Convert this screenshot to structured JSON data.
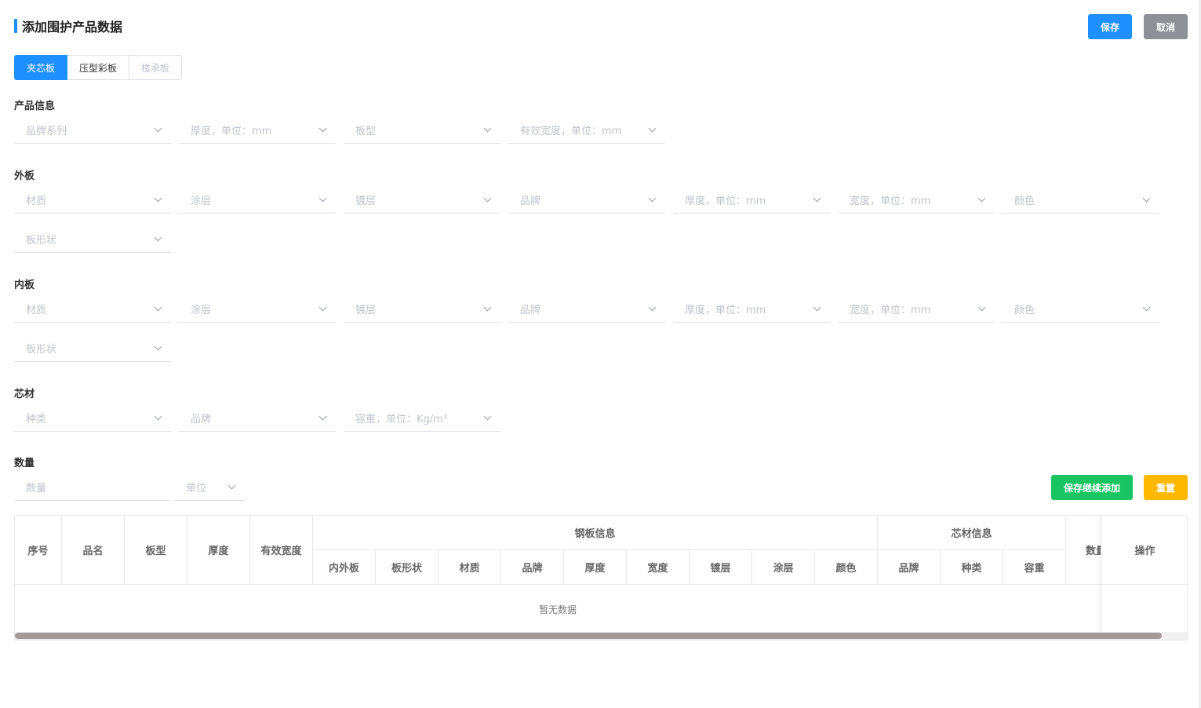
{
  "header": {
    "title": "添加围护产品数据",
    "save_label": "保存",
    "cancel_label": "取消"
  },
  "tabs": [
    {
      "label": "夹芯板",
      "state": "active"
    },
    {
      "label": "压型彩板",
      "state": "normal"
    },
    {
      "label": "楼承板",
      "state": "disabled"
    }
  ],
  "sections": {
    "product": {
      "title": "产品信息",
      "fields": [
        "品牌系列",
        "厚度，单位：mm",
        "板型",
        "有效宽度，单位：mm"
      ]
    },
    "outer": {
      "title": "外板",
      "fields": [
        "材质",
        "涂层",
        "镀层",
        "品牌",
        "厚度，单位：mm",
        "宽度，单位：mm",
        "颜色",
        "板形状"
      ]
    },
    "inner": {
      "title": "内板",
      "fields": [
        "材质",
        "涂层",
        "镀层",
        "品牌",
        "厚度，单位：mm",
        "宽度，单位：mm",
        "颜色",
        "板形状"
      ]
    },
    "core": {
      "title": "芯材",
      "fields": [
        "种类",
        "品牌",
        "容重，单位：Kg/m³"
      ]
    },
    "quantity": {
      "title": "数量",
      "qty_placeholder": "数量",
      "unit_placeholder": "单位"
    }
  },
  "actions": {
    "continue_label": "保存继续添加",
    "reset_label": "重置"
  },
  "table": {
    "headers": {
      "index": "序号",
      "name": "品名",
      "board_type": "板型",
      "thickness": "厚度",
      "effective_width": "有效宽度",
      "steel_group": "钢板信息",
      "core_group": "芯材信息",
      "quantity": "数量",
      "actions": "操作"
    },
    "steel_subheaders": [
      "内外板",
      "板形状",
      "材质",
      "品牌",
      "厚度",
      "宽度",
      "镀层",
      "涂层",
      "颜色"
    ],
    "core_subheaders": [
      "品牌",
      "种类",
      "容重"
    ],
    "empty_text": "暂无数据"
  },
  "colors": {
    "primary": "#1e90ff",
    "cancel": "#8e9096",
    "success": "#19c463",
    "warning": "#ffb800"
  }
}
